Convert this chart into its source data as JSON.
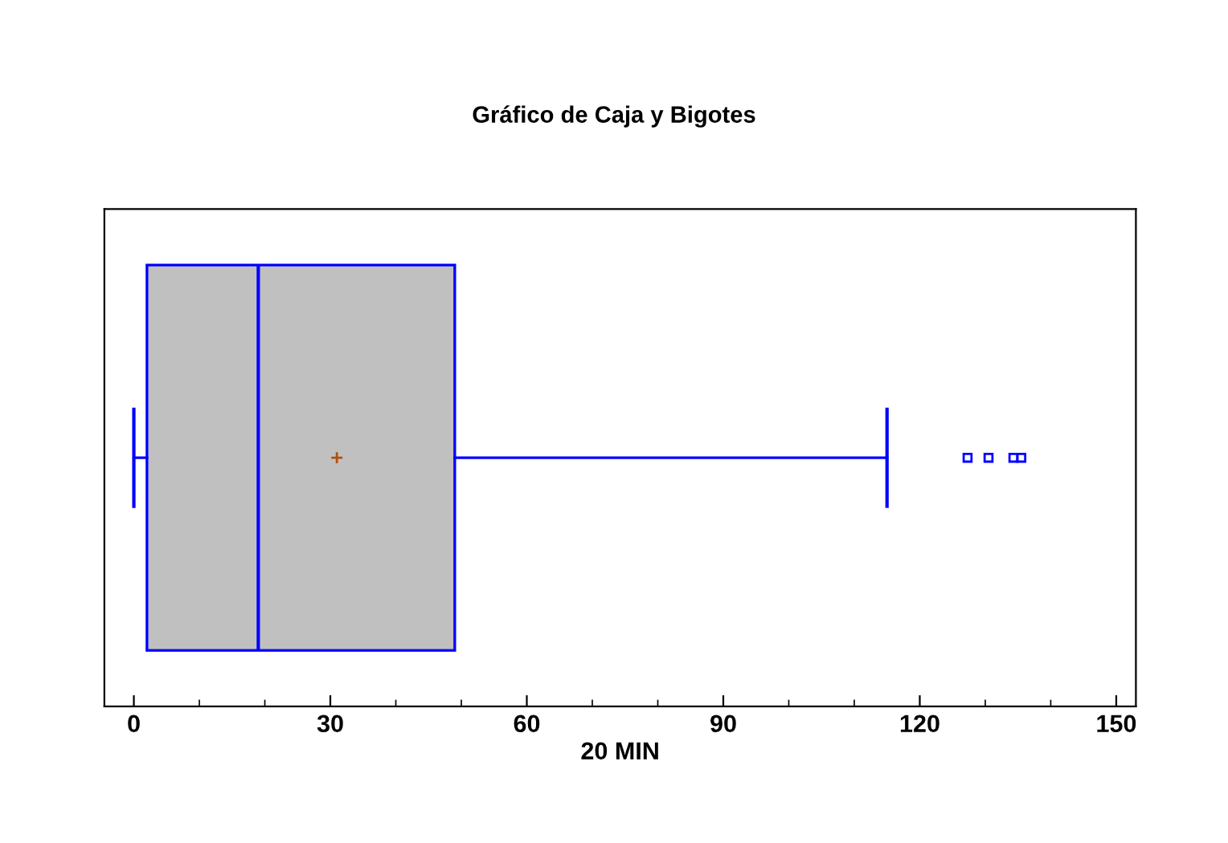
{
  "chart_data": {
    "type": "box",
    "title": "Gráfico de Caja y Bigotes",
    "xlabel": "20 MIN",
    "categories": [
      null
    ],
    "orientation": "horizontal",
    "color": "#0000ff",
    "colors": [
      "#c0c0c0"
    ],
    "marker": "square",
    "boxes": [
      {
        "low": 0,
        "q1": 2,
        "median": 19,
        "q3": 49,
        "high": 115,
        "mean": 31,
        "outliers": [
          127.3,
          130.5,
          134.3,
          135.5
        ]
      }
    ],
    "xlim": [
      -4.5,
      153
    ],
    "xticks": [
      0,
      30,
      60,
      90,
      120,
      150
    ],
    "grid": false,
    "tick_labels": "x"
  }
}
